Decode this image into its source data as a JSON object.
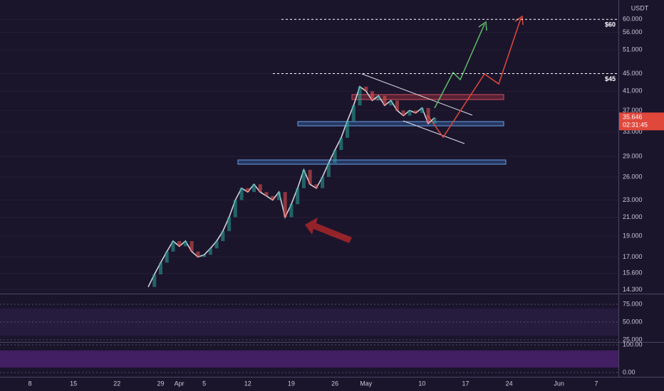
{
  "chart_data": {
    "type": "line",
    "unit": "USDT",
    "color": "#d1d4dc",
    "log_scale": true,
    "categories": [
      "8",
      null,
      null,
      null,
      null,
      null,
      null,
      "15",
      null,
      null,
      null,
      null,
      null,
      null,
      "22",
      null,
      null,
      null,
      null,
      null,
      null,
      "29",
      null,
      null,
      "Apr",
      null,
      null,
      null,
      "5",
      null,
      null,
      null,
      null,
      null,
      null,
      "12",
      null,
      null,
      null,
      null,
      null,
      null,
      "19",
      null,
      null,
      null,
      null,
      null,
      null,
      "26",
      null,
      null,
      null,
      null,
      "May",
      null,
      null,
      null,
      null,
      null,
      null,
      null,
      null,
      "10",
      null,
      null,
      null,
      null,
      null,
      null,
      "17",
      null,
      null,
      null,
      null,
      null,
      null,
      "24",
      null,
      null,
      null,
      null,
      null,
      null,
      null,
      "Jun",
      null,
      null,
      null,
      null,
      null,
      "7"
    ],
    "values": [
      null,
      null,
      null,
      null,
      null,
      null,
      null,
      null,
      null,
      null,
      null,
      null,
      null,
      null,
      null,
      null,
      null,
      null,
      null,
      14.5,
      15.5,
      16.5,
      17.5,
      18.5,
      18,
      18.5,
      17.5,
      17,
      17.2,
      17.8,
      18.5,
      19.5,
      21,
      23,
      24.5,
      24,
      25,
      24,
      23.5,
      23,
      24,
      21,
      22.5,
      24.5,
      27,
      25,
      24.5,
      26,
      28,
      30,
      32,
      35,
      38,
      42,
      41,
      39,
      40,
      38,
      39,
      37,
      36,
      37,
      36.5,
      37.5,
      34.5,
      35.6,
      null,
      null,
      null,
      null,
      null,
      null,
      null,
      null,
      null,
      null,
      null,
      null,
      null,
      null,
      null,
      null,
      null,
      null,
      null,
      null,
      null,
      null,
      null,
      null,
      null,
      null
    ],
    "ylim": [
      14,
      66.5
    ],
    "yticks": [
      {
        "value": 60,
        "label": "60.000"
      },
      {
        "value": 56,
        "label": "56.000"
      },
      {
        "value": 51,
        "label": "51.000"
      },
      {
        "value": 45,
        "label": "45.000"
      },
      {
        "value": 41,
        "label": "41.000"
      },
      {
        "value": 37,
        "label": "37.000"
      },
      {
        "value": 33,
        "label": "33.000"
      },
      {
        "value": 29,
        "label": "29.000"
      },
      {
        "value": 26,
        "label": "26.000"
      },
      {
        "value": 23,
        "label": "23.000"
      },
      {
        "value": 21,
        "label": "21.000"
      },
      {
        "value": 19,
        "label": "19.000"
      },
      {
        "value": 17,
        "label": "17.000"
      },
      {
        "value": 15.6,
        "label": "15.600"
      },
      {
        "value": 14.3,
        "label": "14.300"
      }
    ],
    "annotations": [
      {
        "value": 60,
        "label": "$60"
      },
      {
        "value": 45,
        "label": "$45"
      }
    ],
    "last_price": {
      "value": 35.646,
      "label": "35.646"
    },
    "countdown": "02:31:45",
    "rsi": {
      "ylim": [
        23,
        89
      ],
      "yticks": [
        {
          "value": 75,
          "label": "75.000"
        },
        {
          "value": 50,
          "label": "50.000"
        },
        {
          "value": 25,
          "label": "25.000"
        }
      ]
    },
    "stoch": {
      "ylim": [
        -15,
        108
      ],
      "yticks": [
        {
          "value": 100,
          "label": "100.00"
        },
        {
          "value": 0,
          "label": "0.00"
        }
      ]
    }
  }
}
